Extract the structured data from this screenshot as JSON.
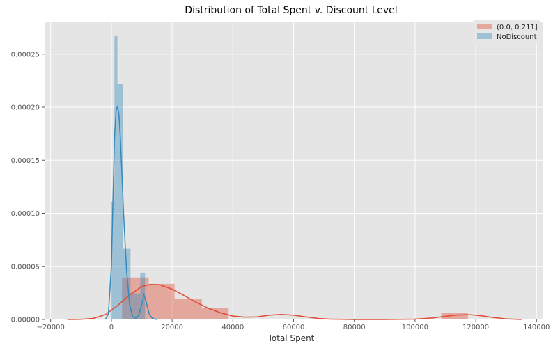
{
  "chart_data": {
    "type": "bar",
    "title": "Distribution of Total Spent v. Discount Level",
    "xlabel": "Total Spent",
    "ylabel": "",
    "xlim": [
      -22000,
      142000
    ],
    "ylim": [
      0,
      0.00028
    ],
    "grid": true,
    "legend_position": "top-right",
    "x_ticks": [
      -20000,
      0,
      20000,
      40000,
      60000,
      80000,
      100000,
      120000,
      140000
    ],
    "x_tick_labels": [
      "−20000",
      "0",
      "20000",
      "40000",
      "60000",
      "80000",
      "100000",
      "120000",
      "140000"
    ],
    "y_ticks": [
      0,
      5e-05,
      0.0001,
      0.00015,
      0.0002,
      0.00025
    ],
    "y_tick_labels": [
      "0.00000",
      "0.00005",
      "0.00010",
      "0.00015",
      "0.00020",
      "0.00025"
    ],
    "series": [
      {
        "name": "(0.0, 0.211]",
        "color": "#e24a33",
        "histogram": [
          {
            "x0": 3500,
            "x1": 12300,
            "height": 3.95e-05
          },
          {
            "x0": 12300,
            "x1": 20800,
            "height": 3.35e-05
          },
          {
            "x0": 20800,
            "x1": 29800,
            "height": 1.9e-05
          },
          {
            "x0": 29800,
            "x1": 38600,
            "height": 1.1e-05
          },
          {
            "x0": 108600,
            "x1": 117400,
            "height": 6.5e-06
          }
        ],
        "kde": {
          "x": [
            -14500,
            -10000,
            -6000,
            -2000,
            2000,
            6000,
            10000,
            13000,
            16000,
            20000,
            24000,
            28000,
            32000,
            36000,
            40000,
            44000,
            48000,
            52000,
            56000,
            60000,
            64000,
            68000,
            72000,
            80000,
            90000,
            100000,
            106000,
            110000,
            114000,
            118000,
            122000,
            126000,
            130000,
            135000
          ],
          "y": [
            0.0,
            2e-07,
            1e-06,
            4.5e-06,
            1.3e-05,
            2.3e-05,
            3.1e-05,
            3.3e-05,
            3.25e-05,
            2.85e-05,
            2.25e-05,
            1.6e-05,
            1.05e-05,
            6.2e-06,
            3.2e-06,
            2.2e-06,
            2.5e-06,
            4e-06,
            4.8e-06,
            4e-06,
            2.5e-06,
            1e-06,
            3e-07,
            0.0,
            0.0,
            3e-07,
            1.5e-06,
            3e-06,
            4.2e-06,
            4.5e-06,
            3.5e-06,
            1.8e-06,
            6e-07,
            0.0
          ]
        }
      },
      {
        "name": "NoDiscount",
        "color": "#348abd",
        "histogram": [
          {
            "x0": 0,
            "x1": 1000,
            "height": 0.000111
          },
          {
            "x0": 1000,
            "x1": 2000,
            "height": 0.000267
          },
          {
            "x0": 2000,
            "x1": 3700,
            "height": 0.000222
          },
          {
            "x0": 3700,
            "x1": 6300,
            "height": 6.65e-05
          },
          {
            "x0": 6300,
            "x1": 9500,
            "height": 2.45e-05
          },
          {
            "x0": 9500,
            "x1": 11100,
            "height": 4.4e-05
          }
        ],
        "kde": {
          "x": [
            -2000,
            -1000,
            0,
            500,
            1000,
            1500,
            2000,
            2500,
            3000,
            3500,
            4000,
            5000,
            6000,
            7000,
            8000,
            9000,
            10000,
            10700,
            11500,
            12500,
            13500,
            15000
          ],
          "y": [
            0.0,
            5e-06,
            5e-05,
            0.00011,
            0.00017,
            0.000196,
            0.000201,
            0.000193,
            0.000168,
            0.000135,
            0.0001,
            4.6e-05,
            1.4e-05,
            3e-06,
            1.2e-06,
            4e-06,
            1.4e-05,
            2.35e-05,
            1.6e-05,
            5e-06,
            1e-06,
            0.0
          ]
        }
      }
    ]
  }
}
